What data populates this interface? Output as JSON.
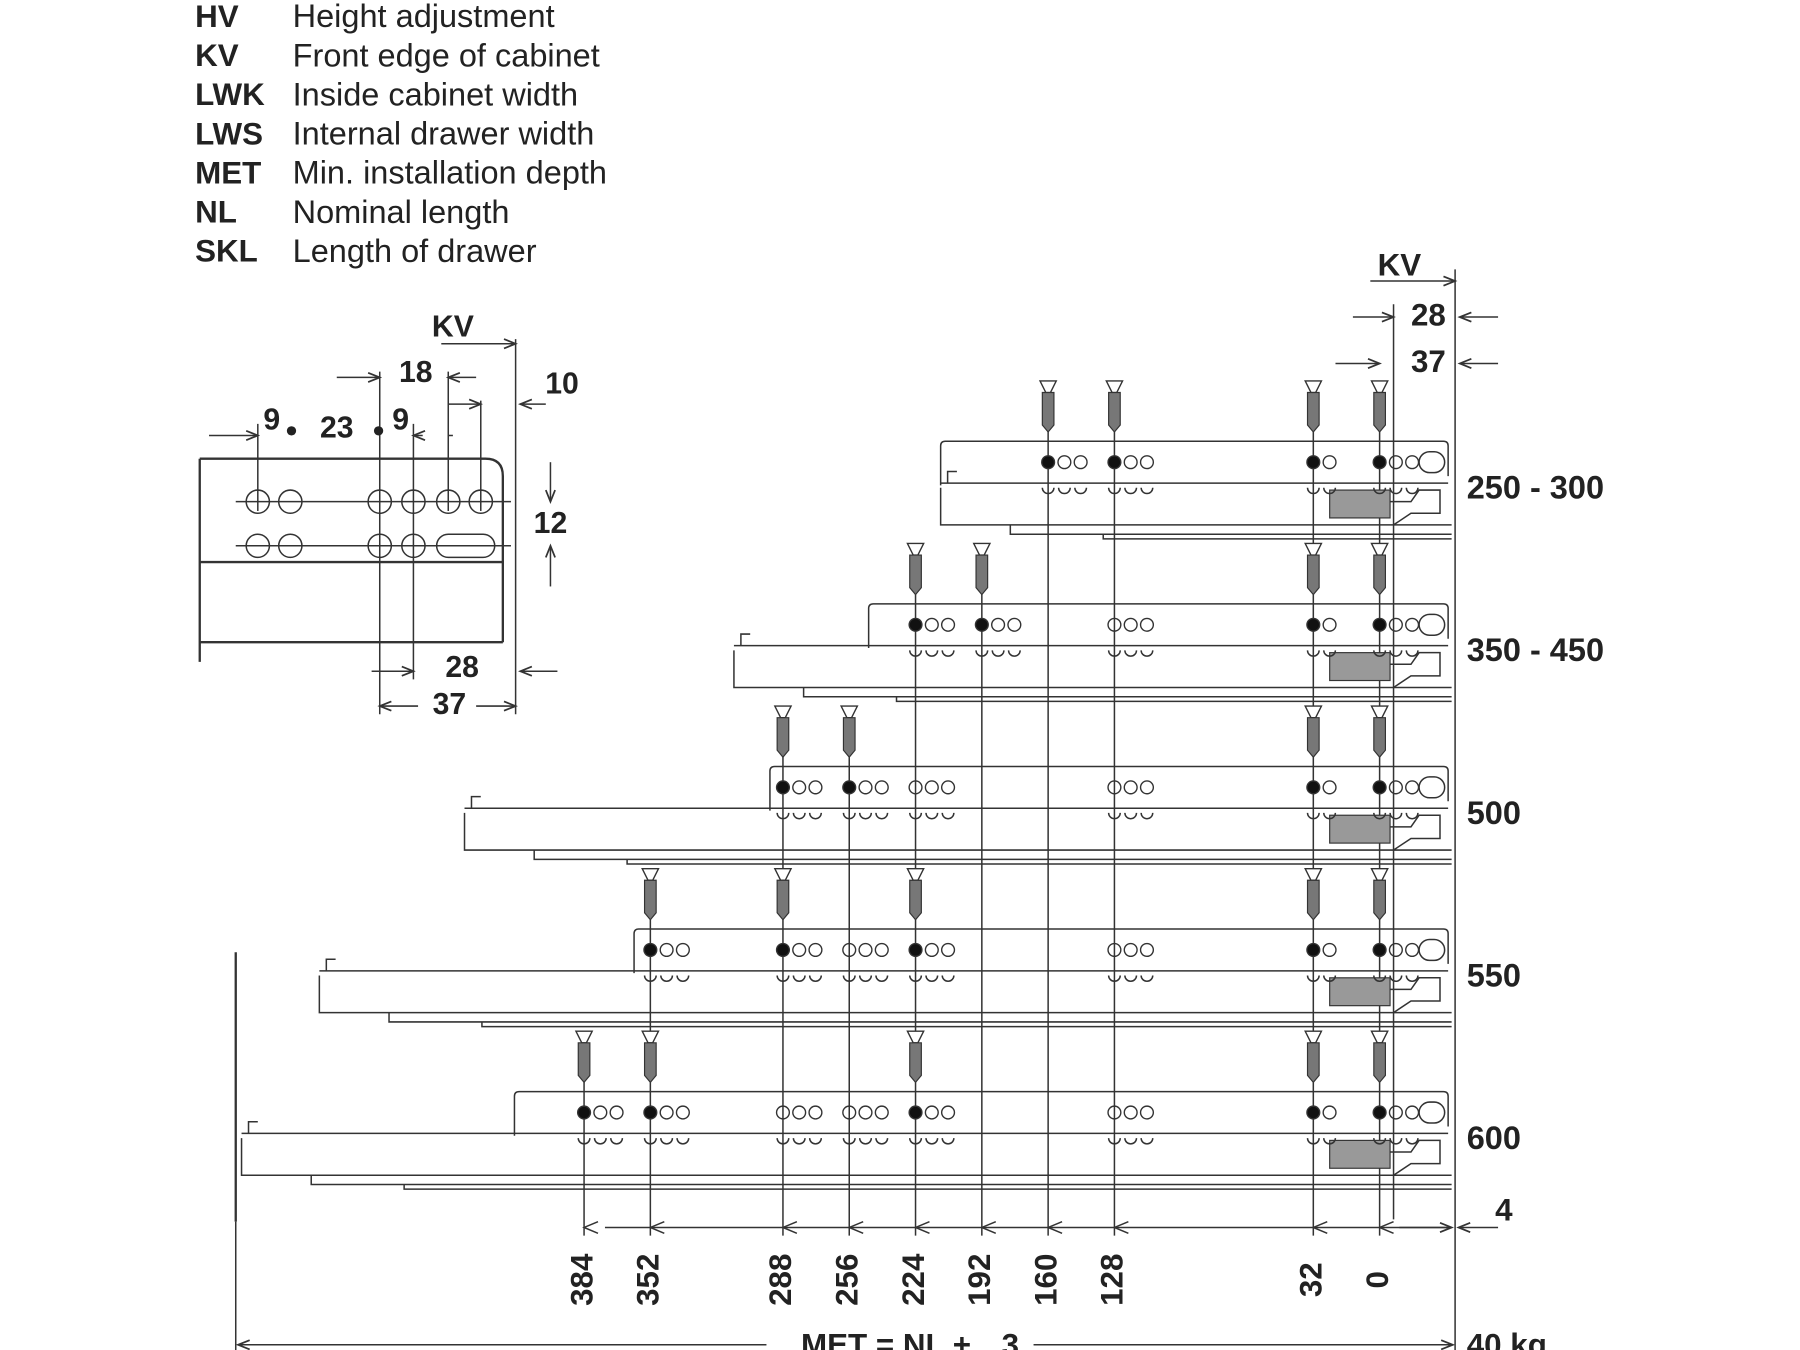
{
  "legend": [
    {
      "code": "HV",
      "description": "Height adjustment"
    },
    {
      "code": "KV",
      "description": "Front edge of cabinet"
    },
    {
      "code": "LWK",
      "description": "Inside cabinet width"
    },
    {
      "code": "LWS",
      "description": "Internal drawer width"
    },
    {
      "code": "MET",
      "description": "Min. installation depth"
    },
    {
      "code": "NL",
      "description": "Nominal length"
    },
    {
      "code": "SKL",
      "description": "Length of drawer"
    }
  ],
  "detail": {
    "kv": "KV",
    "labels": [
      9,
      23,
      9,
      18,
      10,
      12,
      28,
      37
    ]
  },
  "main": {
    "kv": "KV",
    "offsets": [
      28,
      37
    ],
    "gap": 4,
    "lengths": [
      "250 - 300",
      "350 - 450",
      "500",
      "550",
      "600"
    ],
    "positions": [
      384,
      352,
      288,
      256,
      224,
      192,
      160,
      128,
      32,
      0
    ],
    "formula": "MET = NL +",
    "formula_value": 3,
    "load": "40 kg"
  }
}
